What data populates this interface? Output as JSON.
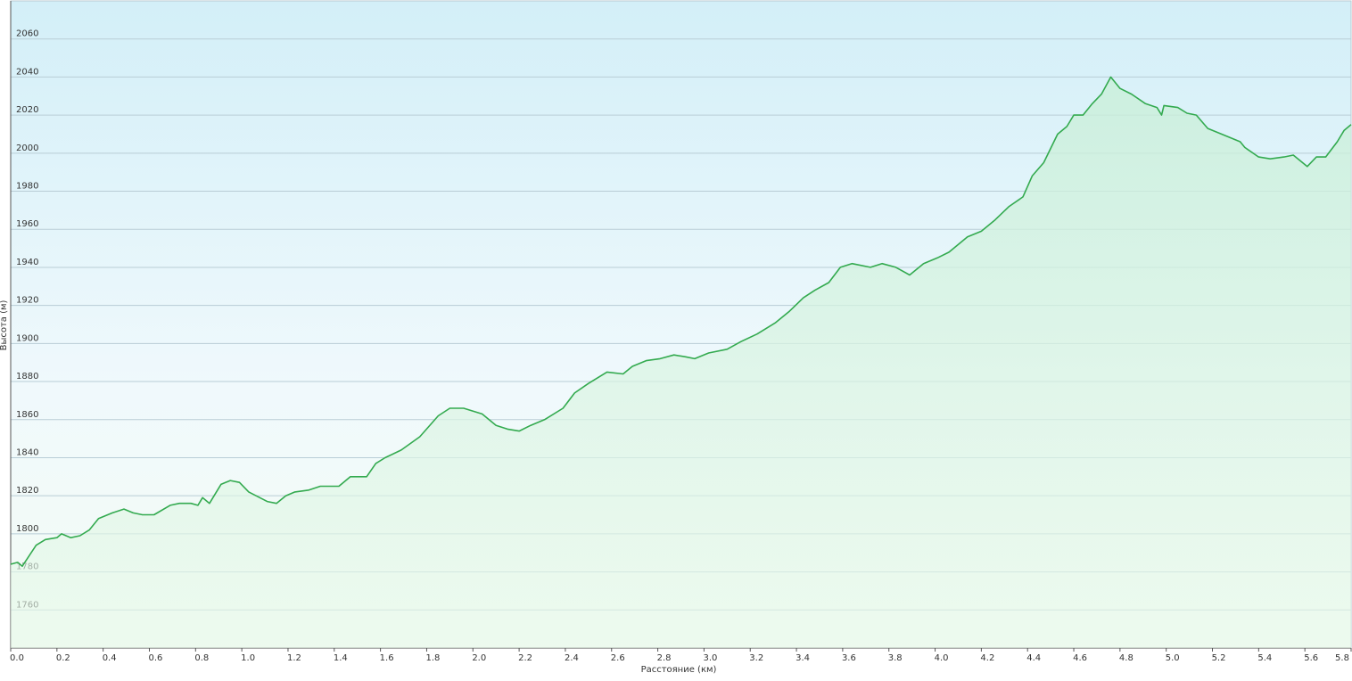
{
  "chart_data": {
    "type": "area",
    "x_label": "Расстояние (км)",
    "y_label": "Высота (м)",
    "x": [
      0,
      0.03,
      0.05,
      0.11,
      0.15,
      0.2,
      0.22,
      0.26,
      0.3,
      0.34,
      0.38,
      0.44,
      0.49,
      0.53,
      0.57,
      0.62,
      0.69,
      0.73,
      0.78,
      0.81,
      0.83,
      0.86,
      0.91,
      0.95,
      0.99,
      1.03,
      1.11,
      1.15,
      1.19,
      1.23,
      1.29,
      1.34,
      1.42,
      1.47,
      1.54,
      1.58,
      1.62,
      1.69,
      1.77,
      1.85,
      1.9,
      1.96,
      2.04,
      2.1,
      2.15,
      2.2,
      2.25,
      2.31,
      2.39,
      2.44,
      2.5,
      2.58,
      2.65,
      2.69,
      2.75,
      2.81,
      2.87,
      2.92,
      2.96,
      3.02,
      3.1,
      3.16,
      3.23,
      3.31,
      3.37,
      3.43,
      3.48,
      3.54,
      3.59,
      3.64,
      3.72,
      3.77,
      3.83,
      3.89,
      3.95,
      4.01,
      4.06,
      4.14,
      4.2,
      4.26,
      4.32,
      4.38,
      4.42,
      4.47,
      4.53,
      4.57,
      4.6,
      4.64,
      4.68,
      4.72,
      4.76,
      4.8,
      4.85,
      4.91,
      4.96,
      4.98,
      4.99,
      5.05,
      5.09,
      5.13,
      5.18,
      5.24,
      5.32,
      5.34,
      5.4,
      5.45,
      5.51,
      5.55,
      5.61,
      5.65,
      5.69,
      5.74,
      5.77,
      5.8
    ],
    "series": [
      {
        "color": "#33aa4f",
        "values": [
          1784,
          1785,
          1783,
          1794,
          1797,
          1798,
          1800,
          1798,
          1799,
          1802,
          1808,
          1811,
          1813,
          1811,
          1810,
          1810,
          1815,
          1816,
          1816,
          1815,
          1819,
          1816,
          1826,
          1828,
          1827,
          1822,
          1817,
          1816,
          1820,
          1822,
          1823,
          1825,
          1825,
          1830,
          1830,
          1837,
          1840,
          1844,
          1851,
          1862,
          1866,
          1866,
          1863,
          1857,
          1855,
          1854,
          1857,
          1860,
          1866,
          1874,
          1879,
          1885,
          1884,
          1888,
          1891,
          1892,
          1894,
          1893,
          1892,
          1895,
          1897,
          1901,
          1905,
          1911,
          1917,
          1924,
          1928,
          1932,
          1940,
          1942,
          1940,
          1942,
          1940,
          1936,
          1942,
          1945,
          1948,
          1956,
          1959,
          1965,
          1972,
          1977,
          1988,
          1995,
          2010,
          2014,
          2020,
          2020,
          2026,
          2031,
          2040,
          2034,
          2031,
          2026,
          2024,
          2020,
          2025,
          2024,
          2021,
          2020,
          2013,
          2010,
          2006,
          2003,
          1998,
          1997,
          1998,
          1999,
          1993,
          1998,
          1998,
          2006,
          2012,
          2015
        ]
      }
    ],
    "xlim": [
      0,
      5.8
    ],
    "ylim": [
      1740,
      2080
    ],
    "xticks": [
      {
        "value": 0,
        "label": "0.0"
      },
      0.2,
      0.4,
      0.6,
      0.8,
      {
        "value": 1,
        "label": "1.0"
      },
      1.2,
      1.4,
      1.6,
      1.8,
      {
        "value": 2,
        "label": "2.0"
      },
      2.2,
      2.4,
      2.6,
      2.8,
      {
        "value": 3,
        "label": "3.0"
      },
      3.2,
      3.4,
      3.6,
      3.8,
      {
        "value": 4,
        "label": "4.0"
      },
      4.2,
      4.4,
      4.6,
      4.8,
      {
        "value": 5,
        "label": "5.0"
      },
      5.2,
      5.4,
      5.6,
      5.8
    ],
    "yticks": [
      1760,
      1780,
      1800,
      1820,
      1840,
      1860,
      1880,
      1900,
      1920,
      1940,
      1960,
      1980,
      2000,
      2020,
      2040,
      2060
    ],
    "grid": true
  }
}
